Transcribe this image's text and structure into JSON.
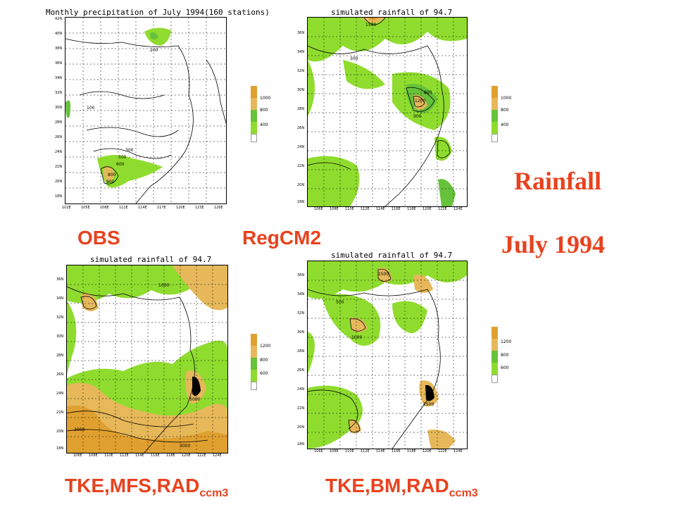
{
  "main_title": {
    "line1": "Rainfall",
    "line2": "July 1994"
  },
  "panels": [
    {
      "id": "obs",
      "title": "Monthly precipitation of July 1994(160 stations)",
      "caption": "OBS",
      "caption_sub": "",
      "y_ticks": [
        "42N",
        "40N",
        "38N",
        "36N",
        "34N",
        "32N",
        "30N",
        "28N",
        "26N",
        "24N",
        "22N",
        "20N",
        "18N"
      ],
      "x_ticks": [
        "102E",
        "105E",
        "108E",
        "111E",
        "114E",
        "117E",
        "120E",
        "123E",
        "126E"
      ],
      "legend": [
        "1000",
        "800",
        "400"
      ],
      "contour_labels": [
        "200",
        "100",
        "300",
        "500",
        "600",
        "800",
        "900"
      ]
    },
    {
      "id": "regcm2",
      "title": "simulated rainfall of 94.7",
      "caption": "RegCM2",
      "caption_sub": "",
      "y_ticks": [
        "36N",
        "34N",
        "32N",
        "30N",
        "28N",
        "26N",
        "24N",
        "22N",
        "20N",
        "18N"
      ],
      "x_ticks": [
        "106E",
        "108E",
        "110E",
        "112E",
        "114E",
        "116E",
        "118E",
        "120E",
        "122E",
        "124E"
      ],
      "legend": [
        "1000",
        "800",
        "400"
      ],
      "contour_labels": [
        "300",
        "600",
        "900",
        "1200",
        "1500"
      ]
    },
    {
      "id": "tke-mfs",
      "title": "simulated rainfall of 94.7",
      "caption": "TKE,MFS,RAD",
      "caption_sub": "ccm3",
      "y_ticks": [
        "36N",
        "34N",
        "32N",
        "30N",
        "28N",
        "26N",
        "24N",
        "22N",
        "20N",
        "18N"
      ],
      "x_ticks": [
        "106E",
        "108E",
        "110E",
        "112E",
        "114E",
        "116E",
        "118E",
        "120E",
        "122E",
        "124E"
      ],
      "legend": [
        "1200",
        "800",
        "600"
      ],
      "contour_labels": [
        "1000",
        "2000",
        "3000",
        "5000"
      ]
    },
    {
      "id": "tke-bm",
      "title": "simulated rainfall of 94.7",
      "caption": "TKE,BM,RAD",
      "caption_sub": "ccm3",
      "y_ticks": [
        "36N",
        "34N",
        "32N",
        "30N",
        "28N",
        "26N",
        "24N",
        "22N",
        "20N",
        "18N"
      ],
      "x_ticks": [
        "106E",
        "108E",
        "110E",
        "112E",
        "114E",
        "116E",
        "118E",
        "120E",
        "122E",
        "124E"
      ],
      "legend": [
        "1200",
        "800",
        "600"
      ],
      "contour_labels": [
        "500",
        "1000",
        "1500",
        "2500"
      ]
    }
  ],
  "colors": {
    "light_green": "#8fdc2e",
    "green": "#66c23a",
    "tan": "#e6b85a",
    "orange": "#e0a030",
    "caption": "#e8421e"
  }
}
